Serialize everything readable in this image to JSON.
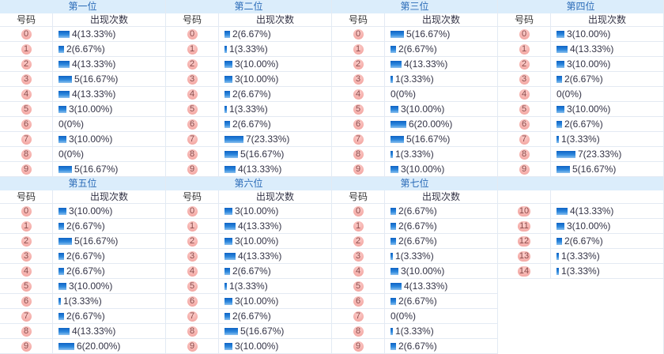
{
  "labels": {
    "number_header": "号码",
    "count_header": "出现次数"
  },
  "colors": {
    "title_band_bg": "#DBEDFB",
    "title_text": "#2B6CB8",
    "header_text": "#333333",
    "row_border": "#E3EAF3",
    "badge_bg": "#F5ADA9",
    "badge_text": "#8A4A4A",
    "value_text": "#333346",
    "bar_top": "#0F63C4",
    "bar_mid": "#2E89DE",
    "bar_bottom": "#8CC0EE"
  },
  "chart_data": [
    {
      "type": "bar",
      "title": "第一位",
      "number_header": "号码",
      "count_header": "出现次数",
      "categories": [
        "0",
        "1",
        "2",
        "3",
        "4",
        "5",
        "6",
        "7",
        "8",
        "9"
      ],
      "values": [
        4,
        2,
        4,
        5,
        4,
        3,
        0,
        3,
        0,
        5
      ],
      "labels": [
        "4(13.33%)",
        "2(6.67%)",
        "4(13.33%)",
        "5(16.67%)",
        "4(13.33%)",
        "3(10.00%)",
        "0(0%)",
        "3(10.00%)",
        "0(0%)",
        "5(16.67%)"
      ]
    },
    {
      "type": "bar",
      "title": "第二位",
      "number_header": "号码",
      "count_header": "出现次数",
      "categories": [
        "0",
        "1",
        "2",
        "3",
        "4",
        "5",
        "6",
        "7",
        "8",
        "9"
      ],
      "values": [
        2,
        1,
        3,
        3,
        2,
        1,
        2,
        7,
        5,
        4
      ],
      "labels": [
        "2(6.67%)",
        "1(3.33%)",
        "3(10.00%)",
        "3(10.00%)",
        "2(6.67%)",
        "1(3.33%)",
        "2(6.67%)",
        "7(23.33%)",
        "5(16.67%)",
        "4(13.33%)"
      ]
    },
    {
      "type": "bar",
      "title": "第三位",
      "number_header": "号码",
      "count_header": "出现次数",
      "categories": [
        "0",
        "1",
        "2",
        "3",
        "4",
        "5",
        "6",
        "7",
        "8",
        "9"
      ],
      "values": [
        5,
        2,
        4,
        1,
        0,
        3,
        6,
        5,
        1,
        3
      ],
      "labels": [
        "5(16.67%)",
        "2(6.67%)",
        "4(13.33%)",
        "1(3.33%)",
        "0(0%)",
        "3(10.00%)",
        "6(20.00%)",
        "5(16.67%)",
        "1(3.33%)",
        "3(10.00%)"
      ]
    },
    {
      "type": "bar",
      "title": "第四位",
      "number_header": "号码",
      "count_header": "出现次数",
      "categories": [
        "0",
        "1",
        "2",
        "3",
        "4",
        "5",
        "6",
        "7",
        "8",
        "9"
      ],
      "values": [
        3,
        4,
        3,
        2,
        0,
        3,
        2,
        1,
        7,
        5
      ],
      "labels": [
        "3(10.00%)",
        "4(13.33%)",
        "3(10.00%)",
        "2(6.67%)",
        "0(0%)",
        "3(10.00%)",
        "2(6.67%)",
        "1(3.33%)",
        "7(23.33%)",
        "5(16.67%)"
      ]
    },
    {
      "type": "bar",
      "title": "第五位",
      "number_header": "号码",
      "count_header": "出现次数",
      "categories": [
        "0",
        "1",
        "2",
        "3",
        "4",
        "5",
        "6",
        "7",
        "8",
        "9"
      ],
      "values": [
        3,
        2,
        5,
        2,
        2,
        3,
        1,
        2,
        4,
        6
      ],
      "labels": [
        "3(10.00%)",
        "2(6.67%)",
        "5(16.67%)",
        "2(6.67%)",
        "2(6.67%)",
        "3(10.00%)",
        "1(3.33%)",
        "2(6.67%)",
        "4(13.33%)",
        "6(20.00%)"
      ]
    },
    {
      "type": "bar",
      "title": "第六位",
      "number_header": "号码",
      "count_header": "出现次数",
      "categories": [
        "0",
        "1",
        "2",
        "3",
        "4",
        "5",
        "6",
        "7",
        "8",
        "9"
      ],
      "values": [
        3,
        4,
        3,
        4,
        2,
        1,
        3,
        2,
        5,
        3
      ],
      "labels": [
        "3(10.00%)",
        "4(13.33%)",
        "3(10.00%)",
        "4(13.33%)",
        "2(6.67%)",
        "1(3.33%)",
        "3(10.00%)",
        "2(6.67%)",
        "5(16.67%)",
        "3(10.00%)"
      ]
    },
    {
      "type": "bar",
      "title": "第七位",
      "number_header": "号码",
      "count_header": "出现次数",
      "categories": [
        "0",
        "1",
        "2",
        "3",
        "4",
        "5",
        "6",
        "7",
        "8",
        "9"
      ],
      "values": [
        2,
        2,
        2,
        1,
        3,
        4,
        2,
        0,
        1,
        2
      ],
      "labels": [
        "2(6.67%)",
        "2(6.67%)",
        "2(6.67%)",
        "1(3.33%)",
        "3(10.00%)",
        "4(13.33%)",
        "2(6.67%)",
        "0(0%)",
        "1(3.33%)",
        "2(6.67%)"
      ]
    },
    {
      "type": "bar",
      "title": "",
      "number_header": "",
      "count_header": "",
      "categories": [
        "10",
        "11",
        "12",
        "13",
        "14"
      ],
      "values": [
        4,
        3,
        2,
        1,
        1
      ],
      "labels": [
        "4(13.33%)",
        "3(10.00%)",
        "2(6.67%)",
        "1(3.33%)",
        "1(3.33%)"
      ]
    }
  ]
}
